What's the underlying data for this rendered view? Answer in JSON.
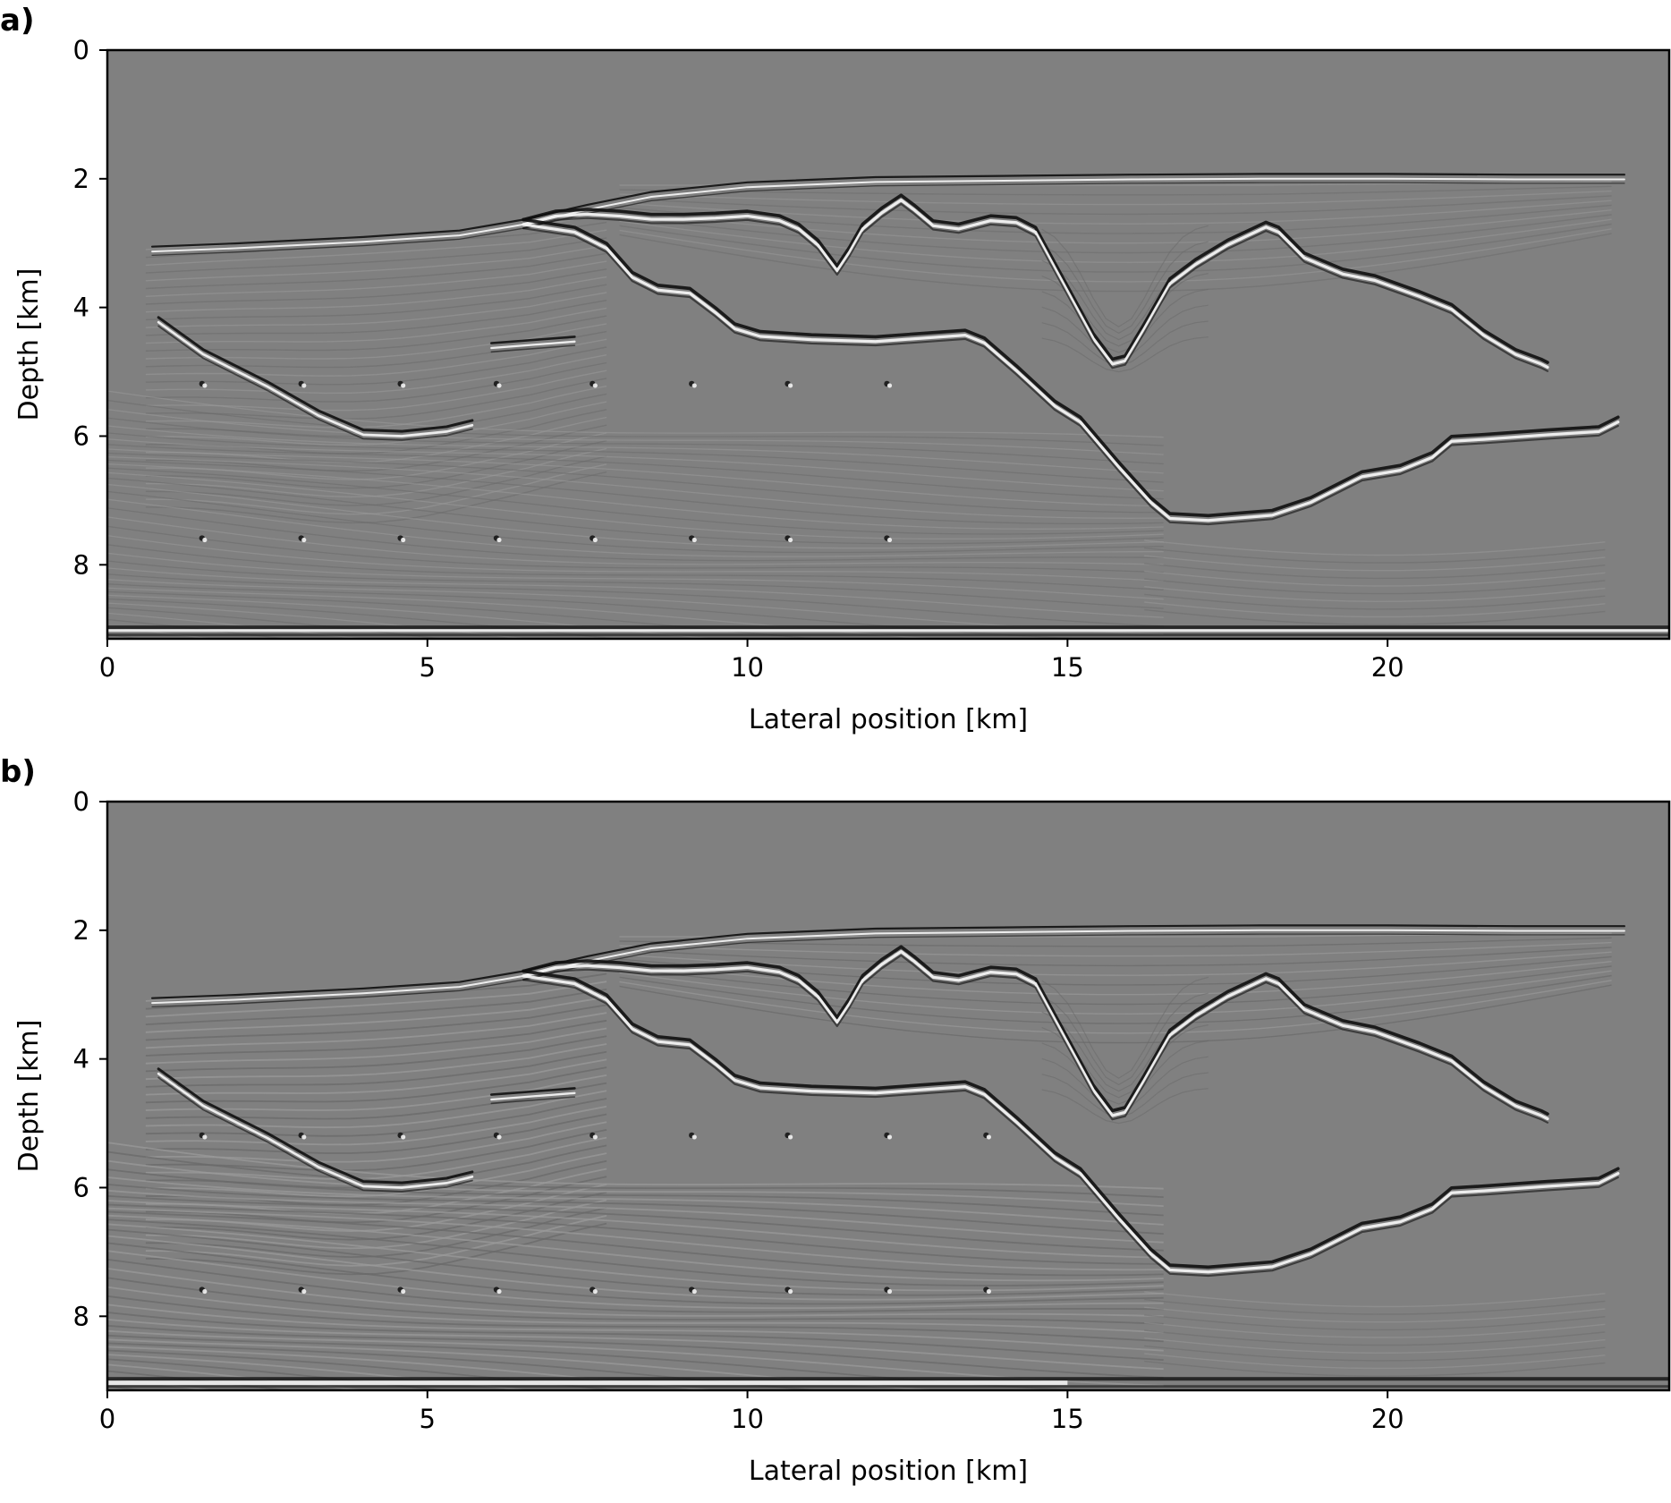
{
  "chart_data": [
    {
      "type": "heatmap",
      "panel_label": "a)",
      "xlabel": "Lateral position [km]",
      "ylabel": "Depth [km]",
      "xlim": [
        0,
        24.4
      ],
      "ylim": [
        9.15,
        0
      ],
      "xticks": [
        0,
        5,
        10,
        15,
        20
      ],
      "yticks": [
        0,
        2,
        4,
        6,
        8
      ],
      "colormap": "gray",
      "background_color": "#808080",
      "grid": false,
      "legend": "none"
    },
    {
      "type": "heatmap",
      "panel_label": "b)",
      "xlabel": "Lateral position [km]",
      "ylabel": "Depth [km]",
      "xlim": [
        0,
        24.4
      ],
      "ylim": [
        9.15,
        0
      ],
      "xticks": [
        0,
        5,
        10,
        15,
        20
      ],
      "yticks": [
        0,
        2,
        4,
        6,
        8
      ],
      "colormap": "gray",
      "background_color": "#808080",
      "grid": false,
      "legend": "none"
    }
  ],
  "structures": {
    "water_bottom": [
      [
        0.7,
        3.1
      ],
      [
        2,
        3.05
      ],
      [
        4,
        2.95
      ],
      [
        5.5,
        2.85
      ],
      [
        6.5,
        2.68
      ],
      [
        7.5,
        2.45
      ],
      [
        8.5,
        2.25
      ],
      [
        10,
        2.1
      ],
      [
        12,
        2.02
      ],
      [
        14,
        2.0
      ],
      [
        16,
        1.98
      ],
      [
        18,
        1.97
      ],
      [
        20,
        1.97
      ],
      [
        22,
        1.98
      ],
      [
        23.7,
        1.98
      ]
    ],
    "salt_top": [
      [
        6.5,
        2.68
      ],
      [
        7,
        2.55
      ],
      [
        7.5,
        2.52
      ],
      [
        8,
        2.55
      ],
      [
        8.5,
        2.6
      ],
      [
        9,
        2.6
      ],
      [
        9.5,
        2.58
      ],
      [
        10,
        2.55
      ],
      [
        10.5,
        2.62
      ],
      [
        10.8,
        2.75
      ],
      [
        11.1,
        3.0
      ],
      [
        11.4,
        3.4
      ],
      [
        11.6,
        3.1
      ],
      [
        11.8,
        2.75
      ],
      [
        12.1,
        2.5
      ],
      [
        12.4,
        2.3
      ],
      [
        12.6,
        2.45
      ],
      [
        12.9,
        2.7
      ],
      [
        13.3,
        2.75
      ],
      [
        13.8,
        2.62
      ],
      [
        14.2,
        2.65
      ],
      [
        14.5,
        2.8
      ],
      [
        14.8,
        3.35
      ],
      [
        15.1,
        3.9
      ],
      [
        15.4,
        4.45
      ],
      [
        15.7,
        4.85
      ],
      [
        15.9,
        4.8
      ],
      [
        16.2,
        4.3
      ],
      [
        16.6,
        3.6
      ],
      [
        17.0,
        3.3
      ],
      [
        17.5,
        3.0
      ],
      [
        18.1,
        2.72
      ],
      [
        18.3,
        2.8
      ],
      [
        18.7,
        3.2
      ],
      [
        19.3,
        3.45
      ],
      [
        19.8,
        3.55
      ],
      [
        20.5,
        3.8
      ],
      [
        21.0,
        4.0
      ],
      [
        21.5,
        4.4
      ],
      [
        22.0,
        4.7
      ],
      [
        22.4,
        4.85
      ],
      [
        22.5,
        4.9
      ]
    ],
    "salt_base": [
      [
        6.5,
        2.68
      ],
      [
        7.3,
        2.8
      ],
      [
        7.8,
        3.05
      ],
      [
        8.2,
        3.5
      ],
      [
        8.6,
        3.7
      ],
      [
        9.1,
        3.75
      ],
      [
        9.5,
        4.05
      ],
      [
        9.8,
        4.3
      ],
      [
        10.2,
        4.42
      ],
      [
        11,
        4.47
      ],
      [
        12,
        4.5
      ],
      [
        13.4,
        4.4
      ],
      [
        13.7,
        4.52
      ],
      [
        14.2,
        4.95
      ],
      [
        14.8,
        5.5
      ],
      [
        15.2,
        5.75
      ],
      [
        15.8,
        6.45
      ],
      [
        16.3,
        7.0
      ],
      [
        16.6,
        7.25
      ],
      [
        17.2,
        7.28
      ],
      [
        18.2,
        7.2
      ],
      [
        18.8,
        7.0
      ],
      [
        19.6,
        6.6
      ],
      [
        20.2,
        6.5
      ],
      [
        20.7,
        6.3
      ],
      [
        21.0,
        6.05
      ],
      [
        21.5,
        6.02
      ],
      [
        22.5,
        5.95
      ],
      [
        23.3,
        5.9
      ],
      [
        23.6,
        5.75
      ]
    ],
    "strong_reflector": [
      [
        0.8,
        4.2
      ],
      [
        1.5,
        4.7
      ],
      [
        2.5,
        5.2
      ],
      [
        3.3,
        5.65
      ],
      [
        4.0,
        5.95
      ],
      [
        4.6,
        5.97
      ],
      [
        5.3,
        5.9
      ],
      [
        5.7,
        5.8
      ]
    ],
    "short_reflector": [
      [
        6.0,
        4.6
      ],
      [
        7.3,
        4.5
      ]
    ],
    "seafloor_flat": [
      [
        0,
        9.0
      ],
      [
        24.4,
        9.0
      ]
    ],
    "point_scatterers": [
      [
        1.5,
        5.2
      ],
      [
        3.05,
        5.2
      ],
      [
        4.6,
        5.2
      ],
      [
        6.1,
        5.2
      ],
      [
        7.6,
        5.2
      ],
      [
        9.15,
        5.2
      ],
      [
        10.65,
        5.2
      ],
      [
        12.2,
        5.2
      ],
      [
        13.75,
        5.2
      ],
      [
        1.5,
        7.6
      ],
      [
        3.05,
        7.6
      ],
      [
        4.6,
        7.6
      ],
      [
        6.1,
        7.6
      ],
      [
        7.6,
        7.6
      ],
      [
        9.15,
        7.6
      ],
      [
        10.65,
        7.6
      ],
      [
        12.2,
        7.6
      ],
      [
        13.75,
        7.6
      ]
    ]
  },
  "styles": {
    "background": "#808080",
    "reflector_dark": "#101010",
    "reflector_light": "#f2f2f2",
    "texture_dark": "#6a6a6a",
    "texture_light": "#999999",
    "axis_color": "#000000"
  }
}
